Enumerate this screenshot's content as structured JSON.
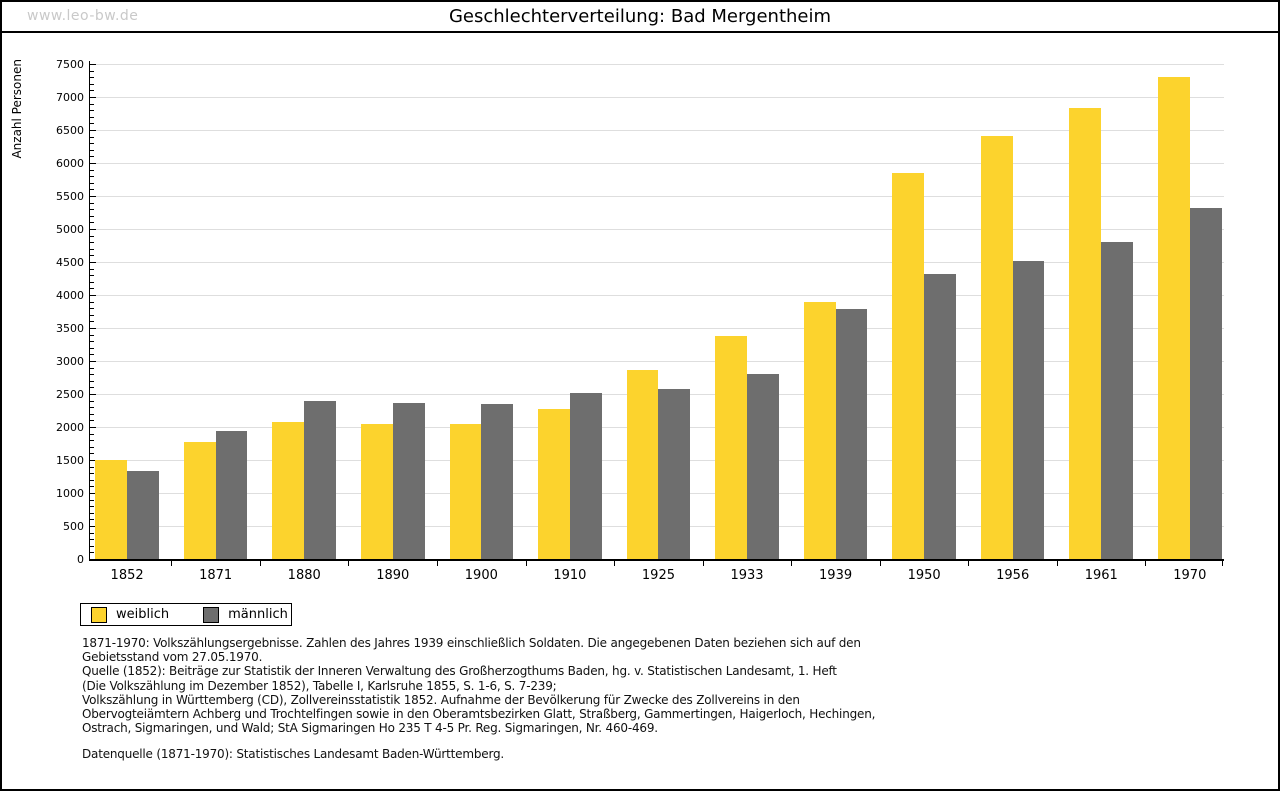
{
  "watermark": "www.leo-bw.de",
  "title": "Geschlechterverteilung: Bad Mergentheim",
  "chart_data": {
    "type": "bar",
    "title": "Geschlechterverteilung: Bad Mergentheim",
    "xlabel": "",
    "ylabel": "Anzahl Personen",
    "ylim": [
      0,
      7500
    ],
    "ytick_step": 500,
    "yminor_step": 100,
    "grid": true,
    "legend_position": "bottom-left",
    "categories": [
      "1852",
      "1871",
      "1880",
      "1890",
      "1900",
      "1910",
      "1925",
      "1933",
      "1939",
      "1950",
      "1956",
      "1961",
      "1970"
    ],
    "series": [
      {
        "name": "weiblich",
        "color": "#fcd32d",
        "values": [
          1500,
          1780,
          2080,
          2050,
          2040,
          2270,
          2860,
          3380,
          3900,
          5850,
          6410,
          6830,
          7310
        ]
      },
      {
        "name": "männlich",
        "color": "#6e6e6e",
        "values": [
          1340,
          1940,
          2390,
          2370,
          2350,
          2510,
          2570,
          2810,
          3790,
          4320,
          4510,
          4810,
          5320
        ]
      }
    ]
  },
  "colors": {
    "gridline": "#dedede",
    "axis": "#000000",
    "watermark": "#c9c9c9"
  },
  "footnotes": [
    "1871-1970: Volkszählungsergebnisse. Zahlen des Jahres 1939 einschließlich Soldaten. Die angegebenen Daten beziehen sich auf den",
    "Gebietsstand vom 27.05.1970.",
    "Quelle (1852): Beiträge zur Statistik der Inneren Verwaltung des Großherzogthums Baden, hg. v. Statistischen Landesamt, 1. Heft",
    "(Die Volkszählung im Dezember 1852), Tabelle I, Karlsruhe 1855, S. 1-6, S. 7-239;",
    "Volkszählung in Württemberg (CD), Zollvereinsstatistik 1852. Aufnahme der Bevölkerung für Zwecke des Zollvereins in den",
    "Obervogteiämtern Achberg und Trochtelfingen sowie in den Oberamtsbezirken Glatt, Straßberg, Gammertingen, Haigerloch, Hechingen,",
    "Ostrach, Sigmaringen, und Wald; StA Sigmaringen Ho 235 T 4-5 Pr. Reg. Sigmaringen, Nr. 460-469."
  ],
  "datasource": "Datenquelle (1871-1970): Statistisches Landesamt Baden-Württemberg."
}
